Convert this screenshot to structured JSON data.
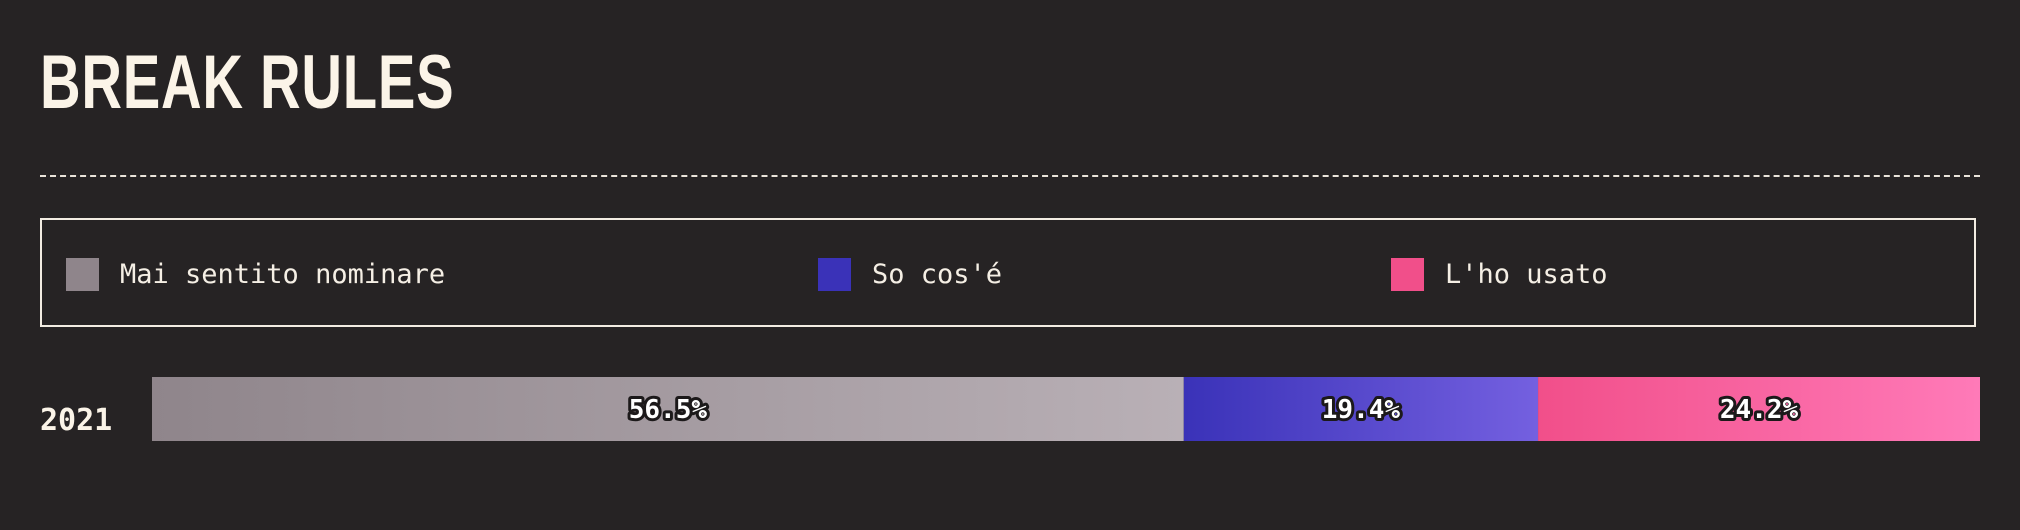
{
  "title": "BREAK RULES",
  "colors": {
    "background": "#262324",
    "mai_sentito": "#8f858b",
    "so_cose": "#3a32b8",
    "lho_usato": "#f14f8a"
  },
  "chart_data": {
    "type": "bar",
    "orientation": "horizontal",
    "stacked": true,
    "normalized": true,
    "categories": [
      "2021"
    ],
    "series": [
      {
        "name": "Mai sentito nominare",
        "values": [
          56.5
        ],
        "label": "56.5%",
        "color_from": "#8f858b",
        "color_to": "#b9b0b6"
      },
      {
        "name": "So cos'é",
        "values": [
          19.4
        ],
        "label": "19.4%",
        "color_from": "#3a32b8",
        "color_to": "#7460e0"
      },
      {
        "name": "L'ho usato",
        "values": [
          24.2
        ],
        "label": "24.2%",
        "color_from": "#f14f8a",
        "color_to": "#ff7ab8"
      }
    ],
    "legend_position": "top",
    "xlim": [
      0,
      100.1
    ]
  }
}
